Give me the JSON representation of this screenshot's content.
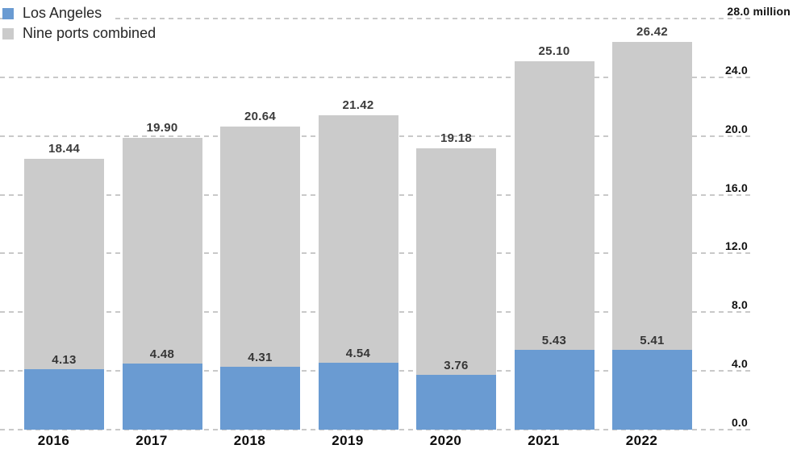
{
  "legend": {
    "items": [
      {
        "label": "Los Angeles",
        "color": "#6a9bd2"
      },
      {
        "label": "Nine ports combined",
        "color": "#cbcbcb"
      }
    ]
  },
  "y_axis": {
    "ticks": [
      "0.0",
      "4.0",
      "8.0",
      "12.0",
      "16.0",
      "20.0",
      "24.0",
      "28.0 million"
    ],
    "unit": "million",
    "max": 28
  },
  "chart_data": {
    "type": "bar",
    "stacked": true,
    "title": "",
    "categories": [
      "2016",
      "2017",
      "2018",
      "2019",
      "2020",
      "2021",
      "2022"
    ],
    "series": [
      {
        "name": "Los Angeles",
        "color": "#6a9bd2",
        "values": [
          4.13,
          4.48,
          4.31,
          4.54,
          3.76,
          5.43,
          5.41
        ]
      },
      {
        "name": "Nine ports combined",
        "color": "#cbcbcb",
        "represents": "total bar height",
        "values": [
          18.44,
          19.9,
          20.64,
          21.42,
          19.18,
          25.1,
          26.42
        ]
      }
    ],
    "value_labels": {
      "totals": [
        "18.44",
        "19.90",
        "20.64",
        "21.42",
        "19.18",
        "25.10",
        "26.42"
      ],
      "los_angeles": [
        "4.13",
        "4.48",
        "4.31",
        "4.54",
        "3.76",
        "5.43",
        "5.41"
      ]
    },
    "ylim": [
      0,
      28
    ],
    "y_unit": "million",
    "grid": "dashed horizontal lines",
    "legend_position": "top-left",
    "value_axis_side": "right"
  }
}
